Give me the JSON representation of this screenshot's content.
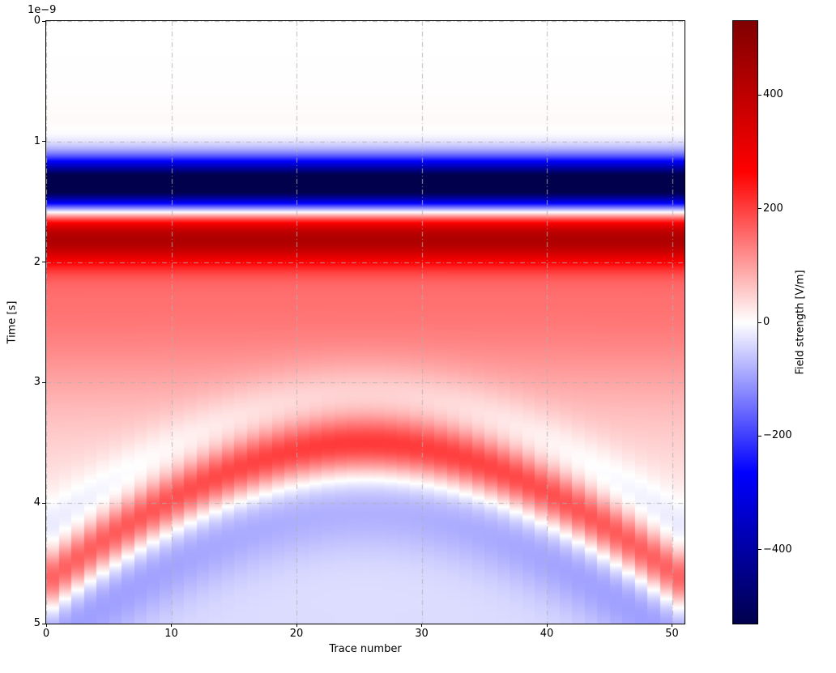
{
  "chart_data": {
    "type": "heatmap",
    "title": "",
    "xlabel": "Trace number",
    "ylabel": "Time [s]",
    "y_offset_text": "1e−9",
    "x_range": [
      0,
      51
    ],
    "y_range_ns": [
      0,
      5
    ],
    "n_traces": 51,
    "x_ticks": [
      {
        "value": 0,
        "label": "0"
      },
      {
        "value": 10,
        "label": "10"
      },
      {
        "value": 20,
        "label": "20"
      },
      {
        "value": 30,
        "label": "30"
      },
      {
        "value": 40,
        "label": "40"
      },
      {
        "value": 50,
        "label": "50"
      }
    ],
    "y_ticks": [
      {
        "value": 0,
        "label": "0"
      },
      {
        "value": 1,
        "label": "1"
      },
      {
        "value": 2,
        "label": "2"
      },
      {
        "value": 3,
        "label": "3"
      },
      {
        "value": 4,
        "label": "4"
      },
      {
        "value": 5,
        "label": "5"
      }
    ],
    "grid": {
      "show": true,
      "color": "#b0b0b0",
      "alpha": 0.85,
      "dash": [
        6,
        3,
        1,
        3
      ]
    },
    "colormap": {
      "name": "seismic",
      "stops": [
        {
          "pos": 0.0,
          "color": "#00004d"
        },
        {
          "pos": 0.25,
          "color": "#0000ff"
        },
        {
          "pos": 0.5,
          "color": "#ffffff"
        },
        {
          "pos": 0.75,
          "color": "#ff0000"
        },
        {
          "pos": 1.0,
          "color": "#800000"
        }
      ]
    },
    "colorbar": {
      "label": "Field strength [V/m]",
      "vmin": -530,
      "vmax": 530,
      "ticks": [
        {
          "value": 400,
          "label": "400"
        },
        {
          "value": 200,
          "label": "200"
        },
        {
          "value": 0,
          "label": "0"
        },
        {
          "value": -200,
          "label": "−200"
        },
        {
          "value": -400,
          "label": "−400"
        }
      ]
    },
    "signal_model": {
      "description": "GPR B-scan: flat direct-wave bands plus a diffraction hyperbola; amplitudes in V/m, times in ns",
      "direct_wave_gaussians": [
        {
          "amp": -650,
          "center_ns": 1.36,
          "sigma_ns": 0.155
        },
        {
          "amp": 340,
          "center_ns": 1.79,
          "sigma_ns": 0.16
        },
        {
          "amp": 110,
          "center_ns": 2.2,
          "sigma_ns": 0.55
        },
        {
          "amp": 55,
          "center_ns": 2.95,
          "sigma_ns": 0.8
        }
      ],
      "hyperbola": {
        "apex_trace": 25,
        "apex_ns": 3.52,
        "moveout_ns_per_trace": 0.12,
        "wavelet_gaussians": [
          {
            "amp": -40,
            "center_ns": -0.42,
            "sigma_ns": 0.2
          },
          {
            "amp": 185,
            "center_ns": 0.0,
            "sigma_ns": 0.17
          },
          {
            "amp": -80,
            "center_ns": 0.5,
            "sigma_ns": 0.27
          },
          {
            "amp": -38,
            "center_ns": 1.35,
            "sigma_ns": 0.85
          }
        ]
      }
    }
  }
}
